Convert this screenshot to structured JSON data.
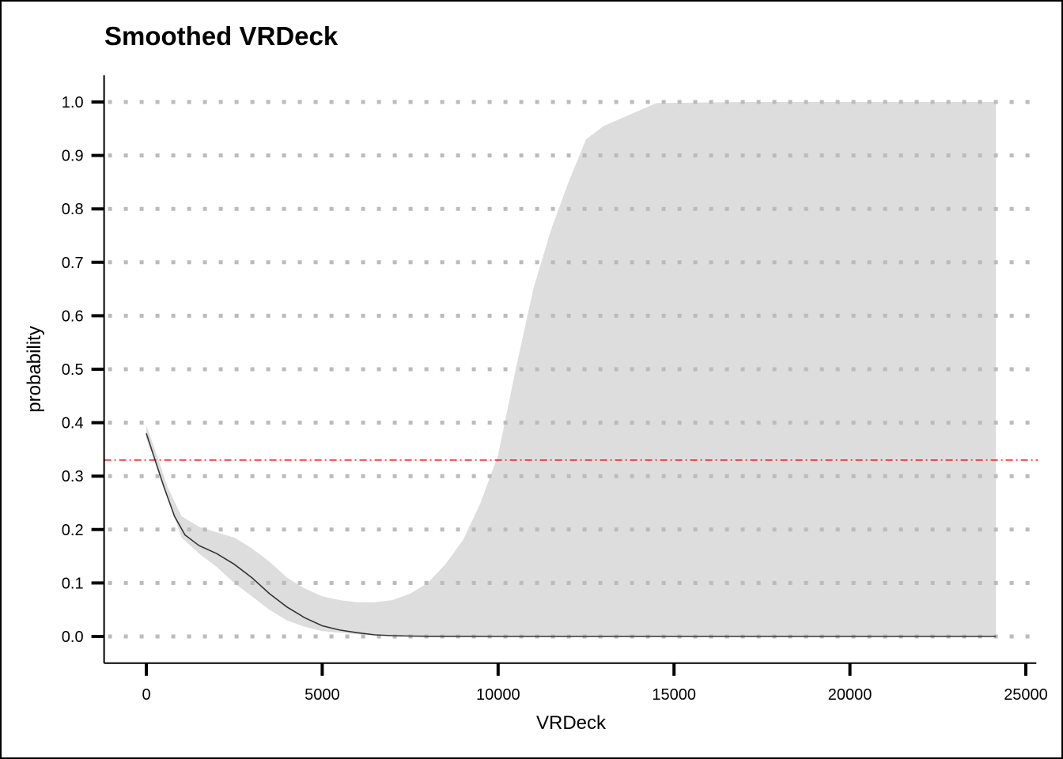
{
  "chart_data": {
    "type": "area",
    "title": "Smoothed VRDeck",
    "xlabel": "VRDeck",
    "ylabel": "probability",
    "xlim": [
      -1200,
      25300
    ],
    "ylim": [
      -0.05,
      1.05
    ],
    "x_ticks": [
      0,
      5000,
      10000,
      15000,
      20000,
      25000
    ],
    "x_tick_labels": [
      "0",
      "5000",
      "10000",
      "15000",
      "20000",
      "25000"
    ],
    "y_ticks": [
      0.0,
      0.1,
      0.2,
      0.3,
      0.4,
      0.5,
      0.6,
      0.7,
      0.8,
      0.9,
      1.0
    ],
    "y_tick_labels": [
      "0.0",
      "0.1",
      "0.2",
      "0.3",
      "0.4",
      "0.5",
      "0.6",
      "0.7",
      "0.8",
      "0.9",
      "1.0"
    ],
    "grid": "horizontal dotted",
    "reference_line": {
      "y": 0.33,
      "color": "#ff0000",
      "style": "dash-dot"
    },
    "series": [
      {
        "type": "line",
        "color": "#333333",
        "points": [
          [
            0,
            0.38
          ],
          [
            200,
            0.34
          ],
          [
            500,
            0.28
          ],
          [
            800,
            0.225
          ],
          [
            1100,
            0.19
          ],
          [
            1500,
            0.17
          ],
          [
            2000,
            0.155
          ],
          [
            2500,
            0.135
          ],
          [
            3000,
            0.11
          ],
          [
            3500,
            0.08
          ],
          [
            4000,
            0.055
          ],
          [
            4500,
            0.035
          ],
          [
            5000,
            0.02
          ],
          [
            5500,
            0.012
          ],
          [
            6000,
            0.007
          ],
          [
            6500,
            0.003
          ],
          [
            7000,
            0.0015
          ],
          [
            7500,
            0.0008
          ],
          [
            8000,
            0.0003
          ],
          [
            10000,
            0.0
          ],
          [
            15000,
            0.0
          ],
          [
            20000,
            0.0
          ],
          [
            24150,
            0.0
          ]
        ]
      },
      {
        "type": "band",
        "color": "#dddddd",
        "upper": [
          [
            0,
            0.395
          ],
          [
            300,
            0.34
          ],
          [
            600,
            0.28
          ],
          [
            1000,
            0.225
          ],
          [
            1500,
            0.205
          ],
          [
            2000,
            0.195
          ],
          [
            2500,
            0.185
          ],
          [
            3000,
            0.165
          ],
          [
            3500,
            0.14
          ],
          [
            4000,
            0.11
          ],
          [
            4500,
            0.09
          ],
          [
            5000,
            0.075
          ],
          [
            5500,
            0.068
          ],
          [
            6000,
            0.064
          ],
          [
            6500,
            0.064
          ],
          [
            7000,
            0.068
          ],
          [
            7500,
            0.08
          ],
          [
            8000,
            0.1
          ],
          [
            8500,
            0.135
          ],
          [
            9000,
            0.18
          ],
          [
            9500,
            0.25
          ],
          [
            10000,
            0.34
          ],
          [
            10500,
            0.5
          ],
          [
            11000,
            0.65
          ],
          [
            11500,
            0.76
          ],
          [
            12000,
            0.85
          ],
          [
            12500,
            0.93
          ],
          [
            13000,
            0.955
          ],
          [
            14500,
            0.998
          ],
          [
            17000,
            1.0
          ],
          [
            24150,
            1.0
          ]
        ],
        "lower": [
          [
            0,
            0.37
          ],
          [
            300,
            0.32
          ],
          [
            600,
            0.26
          ],
          [
            1000,
            0.185
          ],
          [
            1500,
            0.155
          ],
          [
            2000,
            0.13
          ],
          [
            2500,
            0.1
          ],
          [
            3000,
            0.075
          ],
          [
            3500,
            0.05
          ],
          [
            4000,
            0.03
          ],
          [
            4500,
            0.018
          ],
          [
            5000,
            0.01
          ],
          [
            6000,
            0.004
          ],
          [
            7000,
            0.0015
          ],
          [
            8000,
            0.0005
          ],
          [
            10000,
            0.0
          ],
          [
            24150,
            0.0
          ]
        ]
      }
    ]
  }
}
